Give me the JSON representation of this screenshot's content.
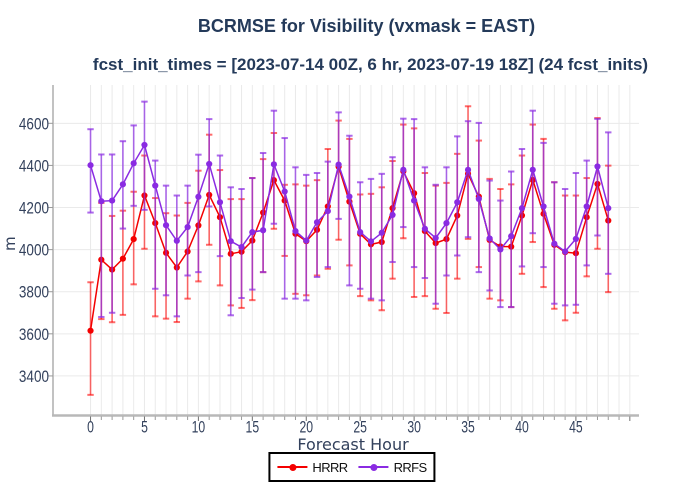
{
  "title": "BCRMSE for Visibility (vxmask = EAST)",
  "subtitle": "fcst_init_times = [2023-07-14 00Z, 6 hr, 2023-07-19 18Z] (24 fcst_inits)",
  "chart_data": {
    "type": "line",
    "title": "BCRMSE for Visibility (vxmask = EAST)",
    "subtitle": "fcst_init_times = [2023-07-14 00Z, 6 hr, 2023-07-19 18Z] (24 fcst_inits)",
    "xlabel": "Forecast Hour",
    "ylabel": "m",
    "x": [
      0,
      1,
      2,
      3,
      4,
      5,
      6,
      7,
      8,
      9,
      10,
      11,
      12,
      13,
      14,
      15,
      16,
      17,
      18,
      19,
      20,
      21,
      22,
      23,
      24,
      25,
      26,
      27,
      28,
      29,
      30,
      31,
      32,
      33,
      34,
      35,
      36,
      37,
      38,
      39,
      40,
      41,
      42,
      43,
      44,
      45,
      46,
      47,
      48
    ],
    "xticks": [
      0,
      5,
      10,
      15,
      20,
      25,
      30,
      35,
      40,
      45
    ],
    "yticks": [
      3400,
      3600,
      3800,
      4000,
      4200,
      4400,
      4600
    ],
    "xlim": [
      -3.48,
      50.85
    ],
    "ylim": [
      3212,
      4782
    ],
    "grid": true,
    "error_bars": true,
    "legend_position": "bottom-center",
    "series": [
      {
        "name": "HRRR",
        "color": "#f40000",
        "err_color": "rgba(255,0,0,0.58)",
        "values": [
          3615,
          3952,
          3905,
          3957,
          4050,
          4257,
          4126,
          3985,
          3915,
          3991,
          4115,
          4260,
          4154,
          3980,
          3990,
          4043,
          4176,
          4330,
          4233,
          4075,
          4040,
          4094,
          4205,
          4394,
          4228,
          4075,
          4025,
          4036,
          4197,
          4372,
          4268,
          4088,
          4031,
          4050,
          4162,
          4360,
          4252,
          4046,
          4015,
          4014,
          4162,
          4331,
          4170,
          4023,
          3988,
          3983,
          4154,
          4312,
          4138
        ],
        "err_lo": [
          3310,
          3670,
          3655,
          3690,
          3835,
          4004,
          3683,
          3672,
          3656,
          3767,
          3849,
          4023,
          3830,
          3735,
          3723,
          3760,
          3893,
          4099,
          3970,
          3790,
          3783,
          3877,
          3909,
          4047,
          3925,
          3779,
          3759,
          3712,
          3862,
          4054,
          3775,
          3779,
          3719,
          3699,
          3862,
          4051,
          3917,
          3767,
          3759,
          3727,
          3885,
          4036,
          3822,
          3719,
          3664,
          3700,
          3873,
          4004,
          3798
        ],
        "err_hi": [
          3845,
          4222,
          4160,
          4185,
          4275,
          4447,
          4245,
          4173,
          4162,
          4222,
          4375,
          4546,
          4378,
          4240,
          4240,
          4340,
          4430,
          4554,
          4308,
          4310,
          4304,
          4330,
          4478,
          4613,
          4526,
          4262,
          4265,
          4296,
          4421,
          4594,
          4576,
          4364,
          4304,
          4317,
          4455,
          4681,
          4518,
          4336,
          4288,
          4310,
          4447,
          4594,
          4526,
          4320,
          4257,
          4257,
          4340,
          4625,
          4399
        ]
      },
      {
        "name": "RRFS",
        "color": "#8a2be2",
        "err_color": "rgba(138,43,226,0.7)",
        "values": [
          4401,
          4230,
          4233,
          4310,
          4410,
          4497,
          4304,
          4116,
          4042,
          4107,
          4251,
          4407,
          4225,
          4040,
          4012,
          4083,
          4092,
          4405,
          4276,
          4088,
          4043,
          4130,
          4183,
          4404,
          4252,
          4083,
          4039,
          4080,
          4165,
          4379,
          4233,
          4099,
          4055,
          4126,
          4225,
          4379,
          4241,
          4053,
          4001,
          4064,
          4197,
          4379,
          4205,
          4028,
          3991,
          4051,
          4205,
          4395,
          4197
        ],
        "err_lo": [
          4176,
          3680,
          3700,
          4100,
          4208,
          4189,
          3814,
          3783,
          3683,
          3877,
          3893,
          4205,
          3969,
          3688,
          3770,
          3810,
          3893,
          4123,
          3767,
          3767,
          3759,
          3870,
          3917,
          4146,
          3830,
          3814,
          3767,
          3759,
          3941,
          4107,
          3917,
          3865,
          3743,
          3877,
          3972,
          4059,
          3893,
          3806,
          3727,
          3727,
          3920,
          4078,
          3917,
          3743,
          3735,
          3738,
          3925,
          4067,
          3885
        ],
        "err_hi": [
          4572,
          4452,
          4452,
          4515,
          4590,
          4703,
          4423,
          4304,
          4257,
          4304,
          4451,
          4620,
          4447,
          4296,
          4288,
          4340,
          4459,
          4660,
          4530,
          4391,
          4355,
          4364,
          4418,
          4652,
          4541,
          4320,
          4336,
          4360,
          4439,
          4622,
          4620,
          4391,
          4308,
          4391,
          4538,
          4610,
          4602,
          4328,
          4233,
          4371,
          4478,
          4660,
          4507,
          4320,
          4288,
          4364,
          4423,
          4621,
          4557
        ]
      }
    ]
  },
  "colors": {
    "title": "#243a5a",
    "tick_label": "#33415c",
    "grid": "#eaeaea",
    "spine": "#b8b8b8"
  }
}
